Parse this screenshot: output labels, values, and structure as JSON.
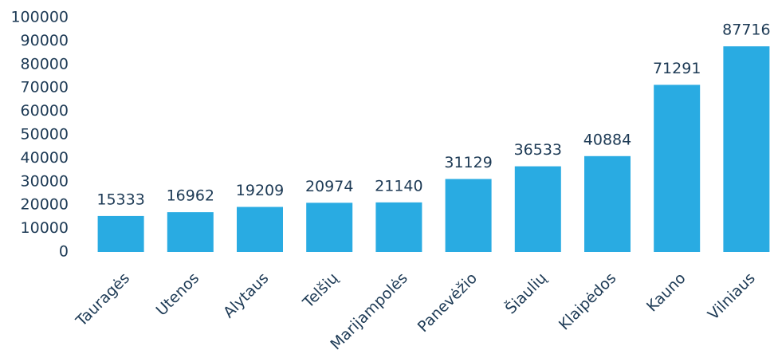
{
  "chart_data": {
    "type": "bar",
    "categories": [
      "Tauragės",
      "Utenos",
      "Alytaus",
      "Telšių",
      "Marijampolės",
      "Panevėžio",
      "Šiaulių",
      "Klaipėdos",
      "Kauno",
      "Vilniaus"
    ],
    "values": [
      15333,
      16962,
      19209,
      20974,
      21140,
      31129,
      36533,
      40884,
      71291,
      87716
    ],
    "color": "#29abe2",
    "ylim": [
      0,
      100000
    ],
    "yticks": [
      0,
      10000,
      20000,
      30000,
      40000,
      50000,
      60000,
      70000,
      80000,
      90000,
      100000
    ],
    "grid": false
  }
}
